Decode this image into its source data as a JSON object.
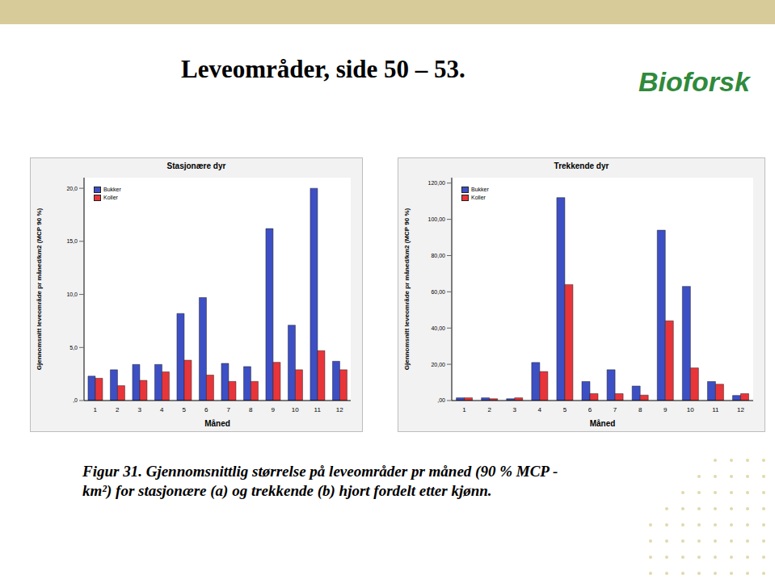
{
  "slide": {
    "title": "Leveområder,  side 50 – 53.",
    "logo": "Bioforsk",
    "caption": [
      "Figur 31. Gjennomsnittlig størrelse på leveområder pr måned (90 % MCP -",
      "km²) for stasjonære (a) og trekkende (b) hjort fordelt etter kjønn."
    ]
  },
  "chart_data": [
    {
      "type": "bar",
      "title": "Stasjonære dyr",
      "x_label": "Måned",
      "y_label": "Gjennomsnitt leveområde pr måned/km2 (MCP 90 %)",
      "categories": [
        "1",
        "2",
        "3",
        "4",
        "5",
        "6",
        "7",
        "8",
        "9",
        "10",
        "11",
        "12"
      ],
      "series": [
        {
          "name": "Bukker",
          "color": "#3d4fc4",
          "values": [
            2.3,
            2.9,
            3.4,
            3.4,
            8.2,
            9.7,
            3.5,
            3.2,
            16.2,
            7.1,
            20.0,
            3.7
          ]
        },
        {
          "name": "Koller",
          "color": "#e8353a",
          "values": [
            2.1,
            1.4,
            1.9,
            2.7,
            3.8,
            2.4,
            1.8,
            1.8,
            3.6,
            2.9,
            4.7,
            2.9
          ]
        }
      ],
      "ylim": [
        0,
        21
      ],
      "yticks": [
        {
          "value": 0,
          "label": ",0"
        },
        {
          "value": 5,
          "label": "5,0"
        },
        {
          "value": 10,
          "label": "10,0"
        },
        {
          "value": 15,
          "label": "15,0"
        },
        {
          "value": 20,
          "label": "20,0"
        }
      ],
      "grid": false,
      "legend": "upper left"
    },
    {
      "type": "bar",
      "title": "Trekkende dyr",
      "x_label": "Måned",
      "y_label": "Gjennomsnitt leveområde pr måned/km2 (MCP 90 %)",
      "categories": [
        "1",
        "2",
        "3",
        "4",
        "5",
        "6",
        "7",
        "8",
        "9",
        "10",
        "11",
        "12"
      ],
      "series": [
        {
          "name": "Bukker",
          "color": "#3d4fc4",
          "values": [
            1.5,
            1.5,
            1.0,
            21,
            112,
            10.5,
            17,
            8,
            94,
            63,
            10.5,
            2.8
          ]
        },
        {
          "name": "Koller",
          "color": "#e8353a",
          "values": [
            1.5,
            1.0,
            1.5,
            16,
            64,
            3.8,
            3.8,
            3.0,
            44,
            18,
            9,
            3.8
          ]
        }
      ],
      "ylim": [
        0,
        123
      ],
      "yticks": [
        {
          "value": 0,
          "label": ",00"
        },
        {
          "value": 20,
          "label": "20,00"
        },
        {
          "value": 40,
          "label": "40,00"
        },
        {
          "value": 60,
          "label": "60,00"
        },
        {
          "value": 80,
          "label": "80,00"
        },
        {
          "value": 100,
          "label": "100,00"
        },
        {
          "value": 120,
          "label": "120,00"
        }
      ],
      "grid": false,
      "legend": "upper left"
    }
  ]
}
